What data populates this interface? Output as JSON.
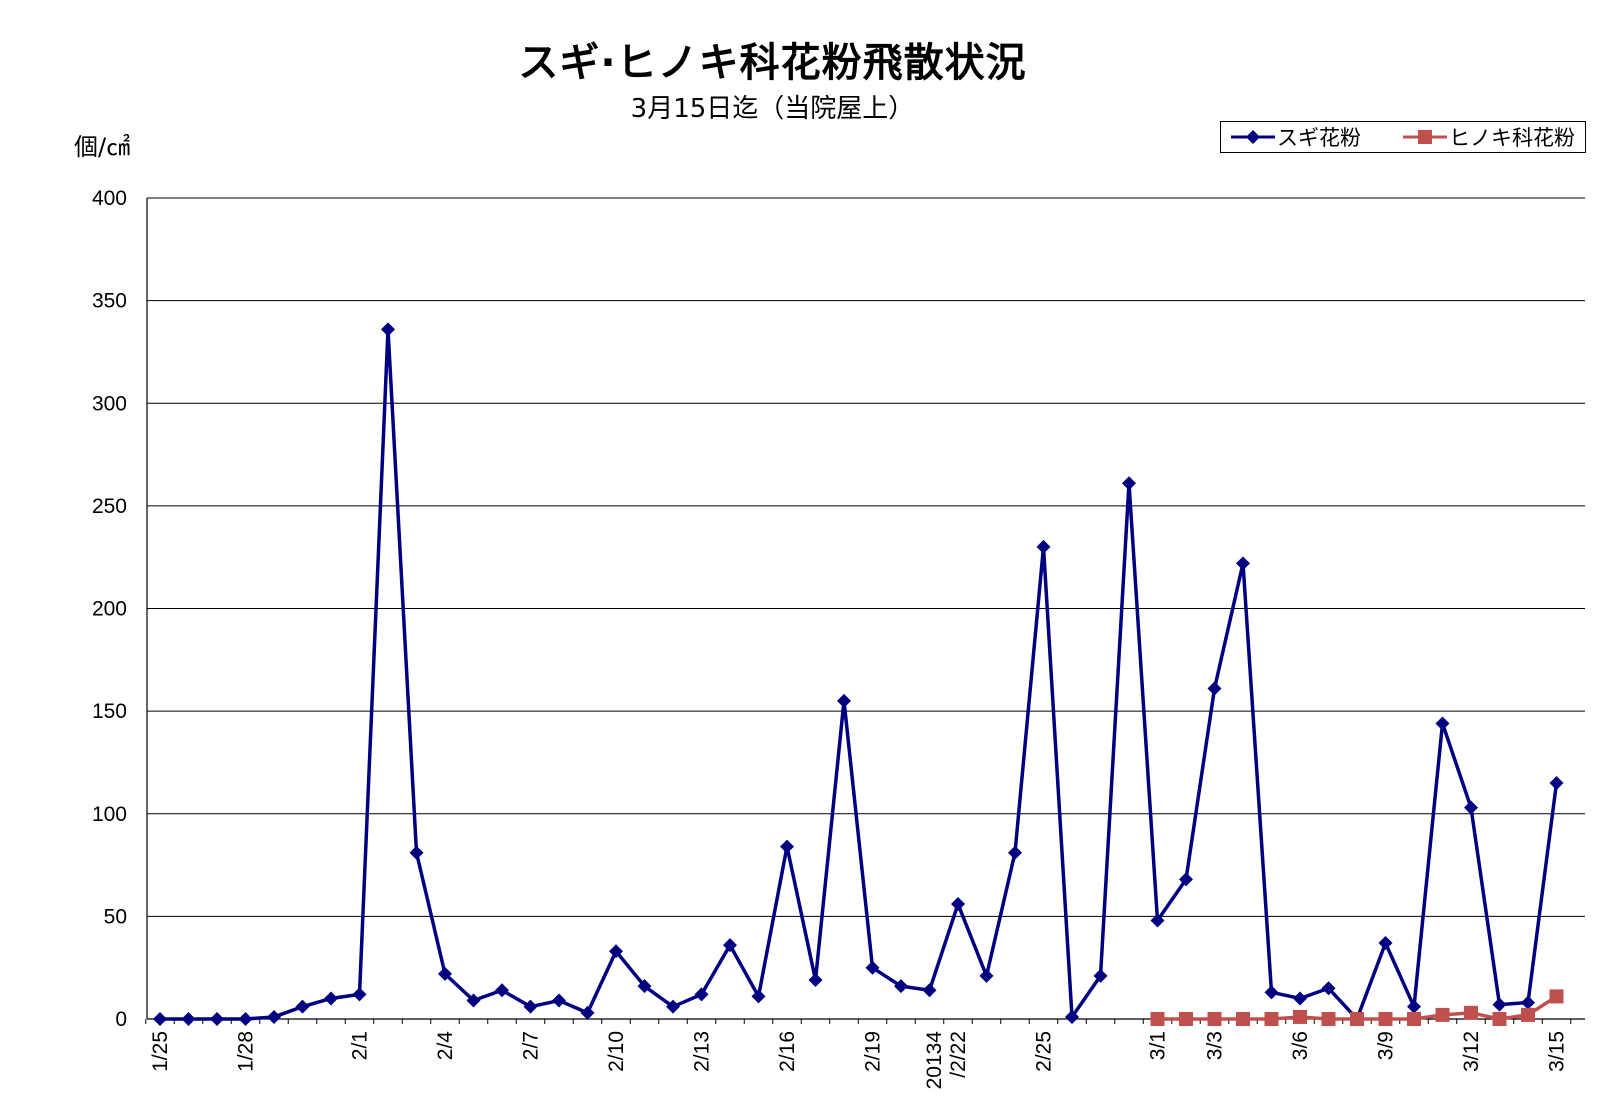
{
  "chart_data": {
    "type": "line",
    "title": "スギ·ヒノキ科花粉飛散状況",
    "subtitle": "3月15日迄（当院屋上）",
    "ylabel": "個/㎠",
    "ylim": [
      0,
      400
    ],
    "yticks": [
      0,
      50,
      100,
      150,
      200,
      250,
      300,
      350,
      400
    ],
    "grid": true,
    "legend_position": "top-right",
    "x_count": 51,
    "xtick_labels": [
      {
        "index": 0,
        "label": "1/25"
      },
      {
        "index": 3,
        "label": "1/28"
      },
      {
        "index": 7,
        "label": "2/1"
      },
      {
        "index": 10,
        "label": "2/4"
      },
      {
        "index": 13,
        "label": "2/7"
      },
      {
        "index": 16,
        "label": "2/10"
      },
      {
        "index": 19,
        "label": "2/13"
      },
      {
        "index": 22,
        "label": "2/16"
      },
      {
        "index": 25,
        "label": "2/19"
      },
      {
        "index": 28,
        "label": "20134\n/2/22"
      },
      {
        "index": 31,
        "label": "2/25"
      },
      {
        "index": 35,
        "label": "3/1"
      },
      {
        "index": 37,
        "label": "3/3"
      },
      {
        "index": 40,
        "label": "3/6"
      },
      {
        "index": 43,
        "label": "3/9"
      },
      {
        "index": 46,
        "label": "3/12"
      },
      {
        "index": 49,
        "label": "3/15"
      }
    ],
    "series": [
      {
        "name": "スギ花粉",
        "color": "#000080",
        "marker": "diamond",
        "start_index": 0,
        "values": [
          0,
          0,
          0,
          0,
          1,
          6,
          10,
          12,
          336,
          81,
          22,
          9,
          14,
          6,
          9,
          3,
          33,
          16,
          6,
          12,
          36,
          11,
          84,
          19,
          155,
          25,
          16,
          14,
          56,
          21,
          81,
          230,
          1,
          21,
          261,
          48,
          68,
          161,
          222,
          13,
          10,
          15,
          0,
          37,
          6,
          144,
          103,
          7,
          8,
          115
        ]
      },
      {
        "name": "ヒノキ科花粉",
        "color": "#C0504D",
        "marker": "square",
        "start_index": 35,
        "values": [
          0,
          0,
          0,
          0,
          0,
          1,
          0,
          0,
          0,
          0,
          2,
          3,
          0,
          2,
          11
        ]
      }
    ]
  }
}
